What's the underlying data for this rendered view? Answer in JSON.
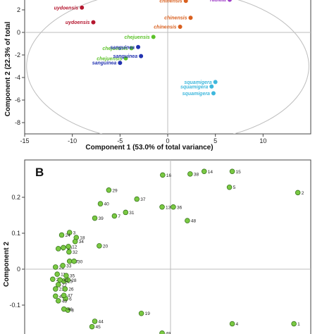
{
  "chart_data": [
    {
      "type": "scatter",
      "xlabel": "Component 1 (53.0% of total variance)",
      "ylabel": "Component 2 (22.3% of total",
      "xlim": [
        -15,
        15
      ],
      "ylim": [
        -9,
        3
      ],
      "xticks": [
        -15,
        -10,
        -5,
        0,
        5,
        10
      ],
      "yticks": [
        2,
        0,
        -2,
        -4,
        -6,
        -8
      ],
      "ellipse": {
        "cx": 0,
        "cy": -3,
        "rx": 14.8,
        "ry": 6.8
      },
      "points": [
        {
          "x": -6.8,
          "y": 3.5,
          "label": "uydoensis",
          "color": "#b5172f"
        },
        {
          "x": -9.0,
          "y": 2.2,
          "label": "uydoensis",
          "color": "#b5172f"
        },
        {
          "x": -7.8,
          "y": 0.9,
          "label": "uydoensis",
          "color": "#b5172f"
        },
        {
          "x": 1.9,
          "y": 2.8,
          "label": "chinensis",
          "color": "#d9601f"
        },
        {
          "x": 2.4,
          "y": 1.3,
          "label": "chinensis",
          "color": "#d9601f"
        },
        {
          "x": 1.3,
          "y": 0.5,
          "label": "chinensis",
          "color": "#d9601f"
        },
        {
          "x": 6.5,
          "y": 2.9,
          "label": "radiata",
          "color": "#a040c8"
        },
        {
          "x": -1.5,
          "y": -0.4,
          "label": "chejuensis",
          "color": "#5cc22a"
        },
        {
          "x": -3.8,
          "y": -1.4,
          "label": "chejuensis",
          "color": "#5cc22a"
        },
        {
          "x": -4.4,
          "y": -2.3,
          "label": "chejuensis",
          "color": "#5cc22a"
        },
        {
          "x": -3.1,
          "y": -1.3,
          "label": "sanguinea",
          "color": "#2233b0"
        },
        {
          "x": -2.8,
          "y": -2.1,
          "label": "sanguinea",
          "color": "#2233b0"
        },
        {
          "x": -5.0,
          "y": -2.7,
          "label": "sanguinea",
          "color": "#2233b0"
        },
        {
          "x": 5.0,
          "y": -4.4,
          "label": "squamigera",
          "color": "#3fb8dd"
        },
        {
          "x": 4.6,
          "y": -4.8,
          "label": "squamigera",
          "color": "#3fb8dd"
        },
        {
          "x": 4.8,
          "y": -5.4,
          "label": "squamigera",
          "color": "#3fb8dd"
        }
      ]
    },
    {
      "type": "scatter",
      "panel_label": "B",
      "ylabel": "Component 2",
      "ylim": [
        -0.16,
        0.3
      ],
      "xlim": [
        -0.26,
        0.25
      ],
      "yticks": [
        0.2,
        0.1,
        0,
        -0.1
      ],
      "marker_color": "#7ac943",
      "points": [
        {
          "label": "1",
          "x": 0.22,
          "y": -0.152
        },
        {
          "label": "2",
          "x": 0.227,
          "y": 0.213
        },
        {
          "label": "3",
          "x": -0.18,
          "y": 0.102
        },
        {
          "label": "4",
          "x": 0.11,
          "y": -0.152
        },
        {
          "label": "5",
          "x": 0.105,
          "y": 0.228
        },
        {
          "label": "6",
          "x": -0.187,
          "y": -0.082
        },
        {
          "label": "7",
          "x": -0.1,
          "y": 0.148
        },
        {
          "label": "8",
          "x": -0.183,
          "y": -0.114
        },
        {
          "label": "9",
          "x": -0.2,
          "y": 0.057
        },
        {
          "label": "10",
          "x": -0.191,
          "y": 0.06
        },
        {
          "label": "11",
          "x": -0.202,
          "y": -0.014
        },
        {
          "label": "12",
          "x": -0.182,
          "y": 0.063
        },
        {
          "label": "13",
          "x": -0.015,
          "y": 0.173
        },
        {
          "label": "14",
          "x": 0.06,
          "y": 0.272
        },
        {
          "label": "15",
          "x": 0.11,
          "y": 0.272
        },
        {
          "label": "16",
          "x": -0.014,
          "y": 0.262
        },
        {
          "label": "17",
          "x": -0.18,
          "y": 0.022
        },
        {
          "label": "18",
          "x": -0.168,
          "y": 0.088
        },
        {
          "label": "19",
          "x": -0.052,
          "y": -0.123
        },
        {
          "label": "20",
          "x": -0.127,
          "y": 0.065
        },
        {
          "label": "21",
          "x": -0.205,
          "y": 0.006
        },
        {
          "label": "22",
          "x": -0.21,
          "y": -0.028
        },
        {
          "label": "23",
          "x": -0.205,
          "y": -0.055
        },
        {
          "label": "24",
          "x": -0.194,
          "y": 0.095
        },
        {
          "label": "25",
          "x": -0.19,
          "y": -0.033
        },
        {
          "label": "26",
          "x": -0.188,
          "y": -0.055
        },
        {
          "label": "27",
          "x": -0.2,
          "y": -0.043
        },
        {
          "label": "28",
          "x": -0.183,
          "y": -0.03
        },
        {
          "label": "29",
          "x": -0.11,
          "y": 0.22
        },
        {
          "label": "30",
          "x": -0.172,
          "y": 0.022
        },
        {
          "label": "31",
          "x": -0.08,
          "y": 0.158
        },
        {
          "label": "32",
          "x": -0.181,
          "y": 0.048
        },
        {
          "label": "33",
          "x": -0.192,
          "y": 0.01
        },
        {
          "label": "34",
          "x": -0.17,
          "y": 0.077
        },
        {
          "label": "35",
          "x": -0.186,
          "y": -0.018
        },
        {
          "label": "36",
          "x": 0.005,
          "y": 0.173
        },
        {
          "label": "37",
          "x": -0.06,
          "y": 0.195
        },
        {
          "label": "38",
          "x": 0.035,
          "y": 0.265
        },
        {
          "label": "39",
          "x": -0.135,
          "y": 0.142
        },
        {
          "label": "40",
          "x": -0.125,
          "y": 0.182
        },
        {
          "label": "41",
          "x": -0.205,
          "y": -0.075
        },
        {
          "label": "42",
          "x": -0.197,
          "y": -0.03
        },
        {
          "label": "43",
          "x": -0.2,
          "y": -0.088
        },
        {
          "label": "44",
          "x": -0.135,
          "y": -0.145
        },
        {
          "label": "45",
          "x": -0.14,
          "y": -0.16
        },
        {
          "label": "46",
          "x": -0.19,
          "y": -0.111
        },
        {
          "label": "47",
          "x": -0.19,
          "y": -0.073
        },
        {
          "label": "48",
          "x": 0.03,
          "y": 0.135
        },
        {
          "label": "49",
          "x": -0.015,
          "y": -0.178
        }
      ]
    }
  ]
}
